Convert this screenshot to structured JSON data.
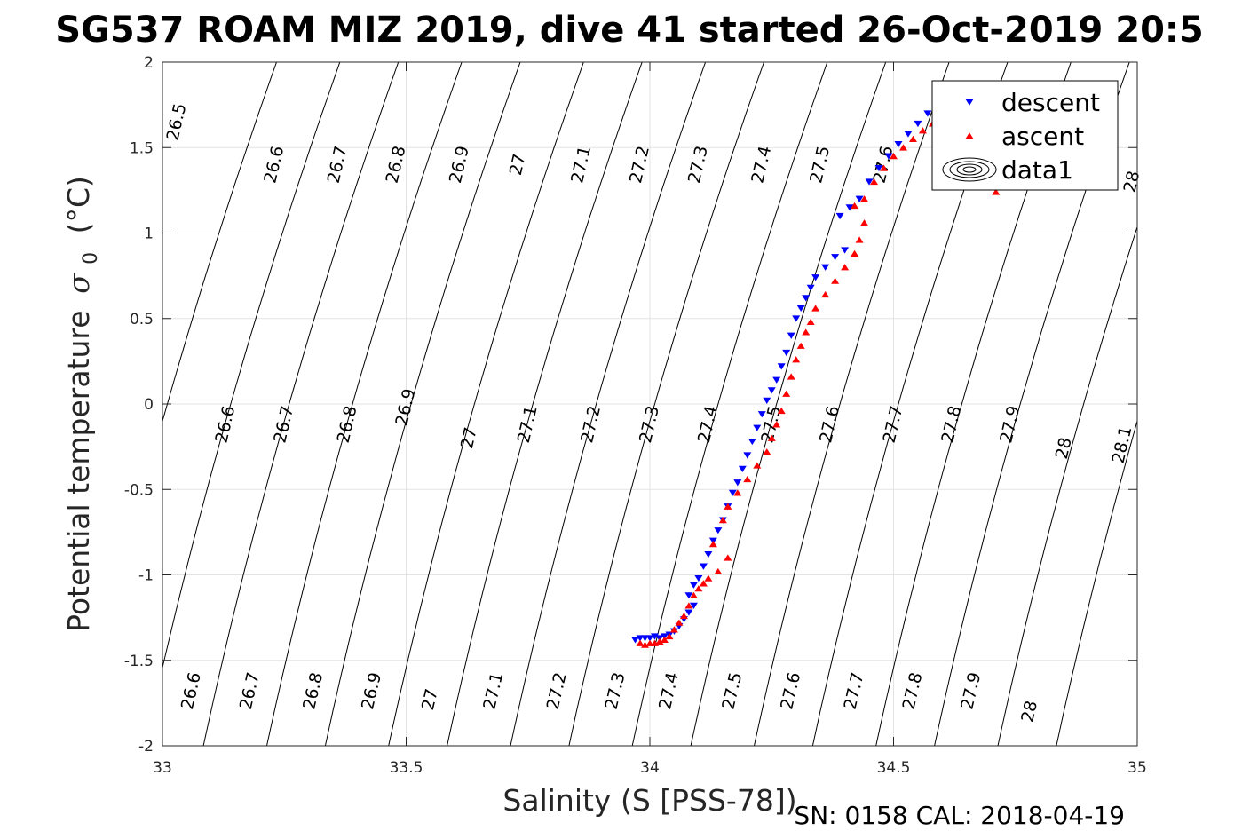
{
  "chart_data": {
    "type": "scatter",
    "title": "SG537 ROAM MIZ 2019, dive 41 started 26-Oct-2019 20:5",
    "xlabel": "Salinity (S [PSS-78])",
    "ylabel": "Potential temperature",
    "ylabel_symbol": "σ",
    "ylabel_subscript": "0",
    "ylabel_unit": "(°C)",
    "xlim": [
      33,
      35
    ],
    "ylim": [
      -2,
      2
    ],
    "xticks": [
      33,
      33.5,
      34,
      34.5,
      35
    ],
    "xtick_labels": [
      "33",
      "33.5",
      "34",
      "34.5",
      "35"
    ],
    "yticks": [
      -2,
      -1.5,
      -1,
      -0.5,
      0,
      0.5,
      1,
      1.5,
      2
    ],
    "ytick_labels": [
      "-2",
      "-1.5",
      "-1",
      "-0.5",
      "0",
      "0.5",
      "1",
      "1.5",
      "2"
    ],
    "grid": true,
    "legend_position": "top-right",
    "footer": "SN: 0158  CAL: 2018-04-19",
    "density_contours": {
      "levels": [
        "26.5",
        "26.6",
        "26.7",
        "26.8",
        "26.9",
        "27",
        "27.1",
        "27.2",
        "27.3",
        "27.4",
        "27.5",
        "27.6",
        "27.7",
        "27.8",
        "27.9",
        "28",
        "28.1"
      ],
      "level_values": [
        26.5,
        26.6,
        26.7,
        26.8,
        26.9,
        27.0,
        27.1,
        27.2,
        27.3,
        27.4,
        27.5,
        27.6,
        27.7,
        27.8,
        27.9,
        28.0,
        28.1
      ],
      "salinity_at_zero": [
        33.01,
        33.14,
        33.26,
        33.39,
        33.51,
        33.64,
        33.76,
        33.89,
        34.01,
        34.14,
        34.26,
        34.39,
        34.51,
        34.64,
        34.76,
        34.89,
        35.01
      ],
      "slope_psu_per_degC": 0.1,
      "labels": [
        {
          "text": "26.5",
          "s": 33.03,
          "t": 1.65
        },
        {
          "text": "26.6",
          "s": 33.23,
          "t": 1.4
        },
        {
          "text": "26.7",
          "s": 33.36,
          "t": 1.4
        },
        {
          "text": "26.8",
          "s": 33.48,
          "t": 1.4
        },
        {
          "text": "26.9",
          "s": 33.61,
          "t": 1.4
        },
        {
          "text": "27",
          "s": 33.73,
          "t": 1.4
        },
        {
          "text": "27.1",
          "s": 33.86,
          "t": 1.4
        },
        {
          "text": "27.2",
          "s": 33.98,
          "t": 1.4
        },
        {
          "text": "27.3",
          "s": 34.1,
          "t": 1.4
        },
        {
          "text": "27.4",
          "s": 34.23,
          "t": 1.4
        },
        {
          "text": "27.5",
          "s": 34.35,
          "t": 1.4
        },
        {
          "text": "27.6",
          "s": 34.48,
          "t": 1.4
        },
        {
          "text": "28",
          "s": 34.99,
          "t": 1.3
        },
        {
          "text": "26.5",
          "s": 33.0,
          "t": 0.05
        },
        {
          "text": "26.6",
          "s": 33.13,
          "t": -0.12
        },
        {
          "text": "26.7",
          "s": 33.25,
          "t": -0.12
        },
        {
          "text": "26.8",
          "s": 33.38,
          "t": -0.12
        },
        {
          "text": "26.9",
          "s": 33.5,
          "t": -0.02
        },
        {
          "text": "27",
          "s": 33.63,
          "t": -0.2
        },
        {
          "text": "27.1",
          "s": 33.75,
          "t": -0.12
        },
        {
          "text": "27.2",
          "s": 33.88,
          "t": -0.12
        },
        {
          "text": "27.3",
          "s": 34.0,
          "t": -0.12
        },
        {
          "text": "27.4",
          "s": 34.12,
          "t": -0.12
        },
        {
          "text": "27.5",
          "s": 34.25,
          "t": -0.12
        },
        {
          "text": "27.6",
          "s": 34.37,
          "t": -0.12
        },
        {
          "text": "27.7",
          "s": 34.5,
          "t": -0.12
        },
        {
          "text": "27.8",
          "s": 34.62,
          "t": -0.12
        },
        {
          "text": "27.9",
          "s": 34.74,
          "t": -0.12
        },
        {
          "text": "28",
          "s": 34.85,
          "t": -0.26
        },
        {
          "text": "28.1",
          "s": 34.97,
          "t": -0.24
        },
        {
          "text": "26.6",
          "s": 33.06,
          "t": -1.68
        },
        {
          "text": "26.7",
          "s": 33.18,
          "t": -1.68
        },
        {
          "text": "26.8",
          "s": 33.31,
          "t": -1.68
        },
        {
          "text": "26.9",
          "s": 33.43,
          "t": -1.68
        },
        {
          "text": "27",
          "s": 33.55,
          "t": -1.73
        },
        {
          "text": "27.1",
          "s": 33.68,
          "t": -1.68
        },
        {
          "text": "27.2",
          "s": 33.81,
          "t": -1.68
        },
        {
          "text": "27.3",
          "s": 33.93,
          "t": -1.68
        },
        {
          "text": "27.4",
          "s": 34.04,
          "t": -1.68
        },
        {
          "text": "27.5",
          "s": 34.17,
          "t": -1.68
        },
        {
          "text": "27.6",
          "s": 34.29,
          "t": -1.68
        },
        {
          "text": "27.7",
          "s": 34.42,
          "t": -1.68
        },
        {
          "text": "27.8",
          "s": 34.54,
          "t": -1.68
        },
        {
          "text": "27.9",
          "s": 34.66,
          "t": -1.68
        },
        {
          "text": "28",
          "s": 34.78,
          "t": -1.8
        }
      ]
    },
    "series": [
      {
        "name": "descent",
        "marker": "triangle-down",
        "color": "#0000ff",
        "points": [
          [
            33.97,
            -1.38
          ],
          [
            33.98,
            -1.37
          ],
          [
            33.99,
            -1.37
          ],
          [
            34.0,
            -1.37
          ],
          [
            34.01,
            -1.36
          ],
          [
            34.02,
            -1.37
          ],
          [
            34.03,
            -1.36
          ],
          [
            34.04,
            -1.35
          ],
          [
            34.05,
            -1.33
          ],
          [
            34.06,
            -1.3
          ],
          [
            34.07,
            -1.26
          ],
          [
            34.08,
            -1.22
          ],
          [
            34.09,
            -1.18
          ],
          [
            34.08,
            -1.12
          ],
          [
            34.09,
            -1.06
          ],
          [
            34.1,
            -1.02
          ],
          [
            34.11,
            -0.95
          ],
          [
            34.12,
            -0.88
          ],
          [
            34.13,
            -0.8
          ],
          [
            34.14,
            -0.74
          ],
          [
            34.15,
            -0.68
          ],
          [
            34.16,
            -0.6
          ],
          [
            34.17,
            -0.52
          ],
          [
            34.18,
            -0.46
          ],
          [
            34.19,
            -0.38
          ],
          [
            34.2,
            -0.3
          ],
          [
            34.21,
            -0.22
          ],
          [
            34.22,
            -0.14
          ],
          [
            34.23,
            -0.06
          ],
          [
            34.24,
            0.02
          ],
          [
            34.25,
            0.08
          ],
          [
            34.26,
            0.14
          ],
          [
            34.27,
            0.22
          ],
          [
            34.28,
            0.3
          ],
          [
            34.29,
            0.4
          ],
          [
            34.3,
            0.5
          ],
          [
            34.31,
            0.56
          ],
          [
            34.32,
            0.62
          ],
          [
            34.33,
            0.68
          ],
          [
            34.34,
            0.74
          ],
          [
            34.36,
            0.8
          ],
          [
            34.38,
            0.86
          ],
          [
            34.4,
            0.9
          ],
          [
            34.39,
            1.1
          ],
          [
            34.41,
            1.15
          ],
          [
            34.43,
            1.2
          ],
          [
            34.45,
            1.3
          ],
          [
            34.47,
            1.38
          ],
          [
            34.49,
            1.45
          ],
          [
            34.51,
            1.52
          ],
          [
            34.53,
            1.58
          ],
          [
            34.55,
            1.64
          ],
          [
            34.57,
            1.7
          ],
          [
            34.59,
            1.73
          ]
        ]
      },
      {
        "name": "ascent",
        "marker": "triangle-up",
        "color": "#ff0000",
        "points": [
          [
            33.98,
            -1.4
          ],
          [
            33.99,
            -1.41
          ],
          [
            34.0,
            -1.4
          ],
          [
            34.01,
            -1.4
          ],
          [
            34.02,
            -1.39
          ],
          [
            34.03,
            -1.38
          ],
          [
            34.04,
            -1.36
          ],
          [
            34.05,
            -1.32
          ],
          [
            34.06,
            -1.28
          ],
          [
            34.07,
            -1.24
          ],
          [
            34.08,
            -1.18
          ],
          [
            34.09,
            -1.12
          ],
          [
            34.1,
            -1.08
          ],
          [
            34.11,
            -1.05
          ],
          [
            34.12,
            -1.02
          ],
          [
            34.14,
            -0.98
          ],
          [
            34.16,
            -0.9
          ],
          [
            34.13,
            -0.82
          ],
          [
            34.15,
            -0.68
          ],
          [
            34.16,
            -0.6
          ],
          [
            34.18,
            -0.52
          ],
          [
            34.2,
            -0.44
          ],
          [
            34.22,
            -0.36
          ],
          [
            34.24,
            -0.28
          ],
          [
            34.25,
            -0.2
          ],
          [
            34.26,
            -0.12
          ],
          [
            34.27,
            -0.04
          ],
          [
            34.28,
            0.06
          ],
          [
            34.29,
            0.16
          ],
          [
            34.3,
            0.26
          ],
          [
            34.31,
            0.34
          ],
          [
            34.32,
            0.42
          ],
          [
            34.33,
            0.48
          ],
          [
            34.34,
            0.56
          ],
          [
            34.36,
            0.64
          ],
          [
            34.38,
            0.72
          ],
          [
            34.4,
            0.8
          ],
          [
            34.42,
            0.88
          ],
          [
            34.43,
            0.96
          ],
          [
            34.44,
            1.06
          ],
          [
            34.42,
            1.16
          ],
          [
            34.44,
            1.2
          ],
          [
            34.46,
            1.3
          ],
          [
            34.48,
            1.38
          ],
          [
            34.5,
            1.45
          ],
          [
            34.52,
            1.5
          ],
          [
            34.54,
            1.55
          ],
          [
            34.56,
            1.6
          ],
          [
            34.58,
            1.64
          ],
          [
            34.6,
            1.66
          ],
          [
            34.71,
            1.24
          ]
        ]
      }
    ],
    "legend": [
      {
        "label": "descent",
        "marker": "triangle-down",
        "color": "#0000ff"
      },
      {
        "label": "ascent",
        "marker": "triangle-up",
        "color": "#ff0000"
      },
      {
        "label": "data1",
        "marker": "contour",
        "color": "#000000"
      }
    ]
  }
}
